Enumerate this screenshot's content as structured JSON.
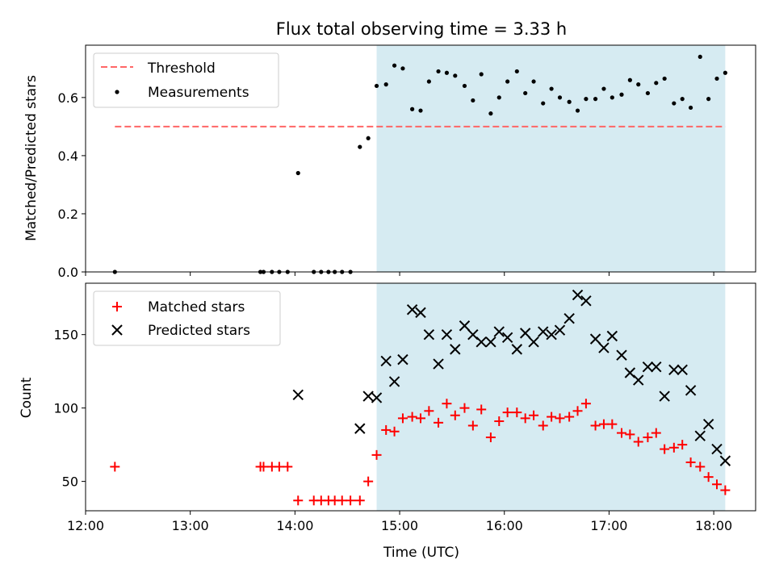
{
  "chart_data": [
    {
      "type": "scatter",
      "title": "Flux total observing time = 3.33 h",
      "ylabel": "Matched/Predicted stars",
      "xlabel": "",
      "xlim_hours": [
        12.0,
        18.4
      ],
      "ylim": [
        0,
        0.78
      ],
      "yticks": [
        0.0,
        0.2,
        0.4,
        0.6
      ],
      "ytick_labels": [
        "0.0",
        "0.2",
        "0.4",
        "0.6"
      ],
      "legend_position": "upper-left",
      "highlight_span_hours": [
        14.78,
        18.11
      ],
      "highlight_color": "#add8e6",
      "threshold": {
        "name": "Threshold",
        "value": 0.5,
        "x_range_hours": [
          12.28,
          18.11
        ],
        "color": "#ff6666",
        "style": "dashed"
      },
      "series": [
        {
          "name": "Measurements",
          "color": "#000000",
          "marker": "dot",
          "x": [
            12.28,
            13.67,
            13.7,
            13.78,
            13.85,
            13.93,
            14.03,
            14.18,
            14.25,
            14.32,
            14.38,
            14.45,
            14.53,
            14.62,
            14.7,
            14.78,
            14.87,
            14.95,
            15.03,
            15.12,
            15.2,
            15.28,
            15.37,
            15.45,
            15.53,
            15.62,
            15.7,
            15.78,
            15.87,
            15.95,
            16.03,
            16.12,
            16.2,
            16.28,
            16.37,
            16.45,
            16.53,
            16.62,
            16.7,
            16.78,
            16.87,
            16.95,
            17.03,
            17.12,
            17.2,
            17.28,
            17.37,
            17.45,
            17.53,
            17.62,
            17.7,
            17.78,
            17.87,
            17.95,
            18.03,
            18.11
          ],
          "y": [
            0.0,
            0.0,
            0.0,
            0.0,
            0.0,
            0.0,
            0.34,
            0.0,
            0.0,
            0.0,
            0.0,
            0.0,
            0.0,
            0.43,
            0.46,
            0.64,
            0.645,
            0.71,
            0.7,
            0.56,
            0.555,
            0.655,
            0.69,
            0.685,
            0.675,
            0.64,
            0.59,
            0.68,
            0.545,
            0.6,
            0.655,
            0.69,
            0.615,
            0.655,
            0.58,
            0.63,
            0.6,
            0.585,
            0.555,
            0.595,
            0.595,
            0.63,
            0.6,
            0.61,
            0.66,
            0.645,
            0.615,
            0.65,
            0.665,
            0.58,
            0.595,
            0.565,
            0.74,
            0.595,
            0.665,
            0.685
          ]
        }
      ]
    },
    {
      "type": "scatter",
      "title": "",
      "ylabel": "Count",
      "xlabel": "Time (UTC)",
      "xlim_hours": [
        12.0,
        18.4
      ],
      "xticks_hours": [
        12,
        13,
        14,
        15,
        16,
        17,
        18
      ],
      "xtick_labels": [
        "12:00",
        "13:00",
        "14:00",
        "15:00",
        "16:00",
        "17:00",
        "18:00"
      ],
      "ylim": [
        30,
        185
      ],
      "yticks": [
        50,
        100,
        150
      ],
      "ytick_labels": [
        "50",
        "100",
        "150"
      ],
      "legend_position": "upper-left",
      "highlight_span_hours": [
        14.78,
        18.11
      ],
      "highlight_color": "#add8e6",
      "series": [
        {
          "name": "Matched stars",
          "color": "#ff0000",
          "marker": "plus",
          "x": [
            12.28,
            13.67,
            13.7,
            13.78,
            13.85,
            13.93,
            14.03,
            14.18,
            14.25,
            14.32,
            14.38,
            14.45,
            14.53,
            14.62,
            14.7,
            14.78,
            14.87,
            14.95,
            15.03,
            15.12,
            15.2,
            15.28,
            15.37,
            15.45,
            15.53,
            15.62,
            15.7,
            15.78,
            15.87,
            15.95,
            16.03,
            16.12,
            16.2,
            16.28,
            16.37,
            16.45,
            16.53,
            16.62,
            16.7,
            16.78,
            16.87,
            16.95,
            17.03,
            17.12,
            17.2,
            17.28,
            17.37,
            17.45,
            17.53,
            17.62,
            17.7,
            17.78,
            17.87,
            17.95,
            18.03,
            18.11
          ],
          "y": [
            60,
            60,
            60,
            60,
            60,
            60,
            37,
            37,
            37,
            37,
            37,
            37,
            37,
            37,
            50,
            68,
            85,
            84,
            93,
            94,
            93,
            98,
            90,
            103,
            95,
            100,
            88,
            99,
            80,
            91,
            97,
            97,
            93,
            95,
            88,
            94,
            93,
            94,
            98,
            103,
            88,
            89,
            89,
            83,
            82,
            77,
            80,
            83,
            72,
            73,
            75,
            63,
            60,
            53,
            48,
            44
          ]
        },
        {
          "name": "Predicted stars",
          "color": "#000000",
          "marker": "x",
          "x": [
            13.67,
            13.7,
            13.78,
            13.85,
            13.93,
            14.03,
            14.18,
            14.25,
            14.32,
            14.38,
            14.45,
            14.53,
            14.62,
            14.7,
            14.78,
            14.87,
            14.95,
            15.03,
            15.12,
            15.2,
            15.28,
            15.37,
            15.45,
            15.53,
            15.62,
            15.7,
            15.78,
            15.87,
            15.95,
            16.03,
            16.12,
            16.2,
            16.28,
            16.37,
            16.45,
            16.53,
            16.62,
            16.7,
            16.78,
            16.87,
            16.95,
            17.03,
            17.12,
            17.2,
            17.28,
            17.37,
            17.45,
            17.53,
            17.62,
            17.7,
            17.78,
            17.87,
            17.95,
            18.03,
            18.11
          ],
          "y": [
            null,
            null,
            null,
            null,
            null,
            109,
            null,
            null,
            null,
            null,
            null,
            null,
            86,
            108,
            107,
            132,
            118,
            133,
            167,
            165,
            150,
            130,
            150,
            140,
            156,
            150,
            145,
            145,
            152,
            148,
            140,
            151,
            145,
            152,
            150,
            153,
            161,
            177,
            173,
            147,
            141,
            149,
            136,
            124,
            119,
            128,
            128,
            108,
            126,
            126,
            112,
            81,
            89,
            72,
            64
          ]
        }
      ]
    }
  ]
}
